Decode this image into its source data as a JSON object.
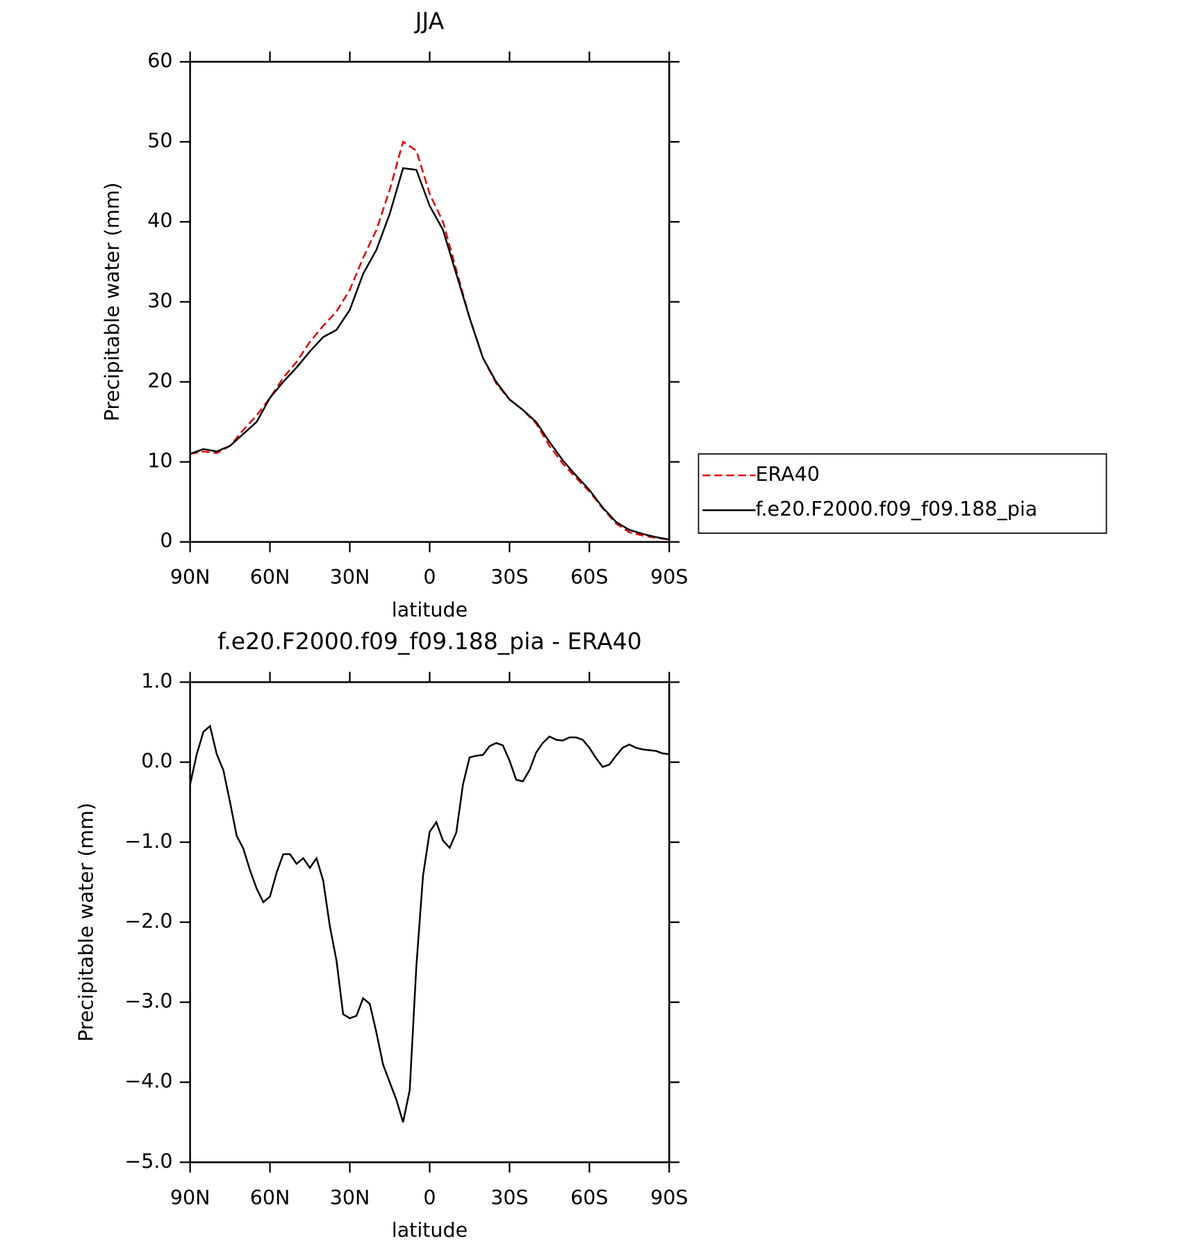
{
  "chart_data": [
    {
      "type": "line",
      "title": "JJA",
      "xlabel": "latitude",
      "ylabel": "Precipitable water (mm)",
      "x": [
        90,
        85,
        80,
        75,
        70,
        65,
        60,
        55,
        50,
        45,
        40,
        35,
        30,
        25,
        20,
        15,
        10,
        5,
        0,
        -5,
        -10,
        -15,
        -20,
        -25,
        -30,
        -35,
        -40,
        -45,
        -50,
        -55,
        -60,
        -65,
        -70,
        -75,
        -80,
        -85,
        -90
      ],
      "series": [
        {
          "name": "ERA40",
          "color": "#e00000",
          "line_style": "dashed",
          "values": [
            11,
            11.3,
            11.1,
            12,
            14,
            15.8,
            18,
            20.5,
            22.5,
            25,
            27,
            28.8,
            31.5,
            35.5,
            39,
            44,
            50,
            48.9,
            43.5,
            40,
            34,
            28,
            23,
            19.8,
            17.8,
            16.5,
            14.8,
            12,
            9.8,
            8,
            6.3,
            4.2,
            2.3,
            1.2,
            0.8,
            0.5,
            0.3
          ]
        },
        {
          "name": "f.e20.F2000.f09_f09.188_pia",
          "color": "#000000",
          "line_style": "solid",
          "values": [
            11,
            11.6,
            11.3,
            12,
            13.5,
            15,
            18,
            20,
            21.8,
            23.8,
            25.6,
            26.5,
            29,
            33.5,
            36.5,
            41,
            46.7,
            46.5,
            42,
            39,
            33.5,
            28,
            23,
            20,
            17.8,
            16.5,
            15,
            12.5,
            10.2,
            8.3,
            6.5,
            4.3,
            2.5,
            1.5,
            1,
            0.6,
            0.3
          ]
        }
      ],
      "xlim": [
        90,
        -90
      ],
      "xticks": [
        {
          "value": 90,
          "label": "90N"
        },
        {
          "value": 60,
          "label": "60N"
        },
        {
          "value": 30,
          "label": "30N"
        },
        0,
        {
          "value": -30,
          "label": "30S"
        },
        {
          "value": -60,
          "label": "60S"
        },
        {
          "value": -90,
          "label": "90S"
        }
      ],
      "ylim": [
        0,
        60
      ],
      "yticks": [
        0,
        10,
        20,
        30,
        40,
        50,
        60
      ],
      "legend": "right"
    },
    {
      "type": "line",
      "title": "f.e20.F2000.f09_f09.188_pia - ERA40",
      "xlabel": "latitude",
      "ylabel": "Precipitable water (mm)",
      "x": [
        90,
        87.5,
        85,
        82.5,
        80,
        77.5,
        75,
        72.5,
        70,
        67.5,
        65,
        62.5,
        60,
        57.5,
        55,
        52.5,
        50,
        47.5,
        45,
        42.5,
        40,
        37.5,
        35,
        32.5,
        30,
        27.5,
        25,
        22.5,
        20,
        17.5,
        15,
        12.5,
        10,
        7.5,
        5,
        2.5,
        0,
        -2.5,
        -5,
        -7.5,
        -10,
        -12.5,
        -15,
        -17.5,
        -20,
        -22.5,
        -25,
        -27.5,
        -30,
        -32.5,
        -35,
        -37.5,
        -40,
        -42.5,
        -45,
        -47.5,
        -50,
        -52.5,
        -55,
        -57.5,
        -60,
        -62.5,
        -65,
        -67.5,
        -70,
        -72.5,
        -75,
        -77.5,
        -80,
        -82.5,
        -85,
        -87.5,
        -90
      ],
      "series": [
        {
          "color": "#000000",
          "line_style": "solid",
          "values": [
            -0.28,
            0.1,
            0.38,
            0.45,
            0.1,
            -0.1,
            -0.5,
            -0.92,
            -1.08,
            -1.35,
            -1.58,
            -1.75,
            -1.68,
            -1.38,
            -1.15,
            -1.15,
            -1.27,
            -1.2,
            -1.32,
            -1.2,
            -1.48,
            -2.05,
            -2.48,
            -3.15,
            -3.2,
            -3.17,
            -2.95,
            -3.02,
            -3.38,
            -3.78,
            -4.0,
            -4.22,
            -4.5,
            -4.1,
            -2.55,
            -1.42,
            -0.87,
            -0.75,
            -0.98,
            -1.07,
            -0.88,
            -0.28,
            0.06,
            0.08,
            0.09,
            0.2,
            0.24,
            0.21,
            0.02,
            -0.22,
            -0.24,
            -0.1,
            0.12,
            0.24,
            0.32,
            0.28,
            0.27,
            0.31,
            0.31,
            0.28,
            0.18,
            0.05,
            -0.06,
            -0.03,
            0.08,
            0.18,
            0.22,
            0.18,
            0.16,
            0.15,
            0.14,
            0.11,
            0.1
          ]
        }
      ],
      "xlim": [
        90,
        -90
      ],
      "xticks": [
        {
          "value": 90,
          "label": "90N"
        },
        {
          "value": 60,
          "label": "60N"
        },
        {
          "value": 30,
          "label": "30N"
        },
        0,
        {
          "value": -30,
          "label": "30S"
        },
        {
          "value": -60,
          "label": "60S"
        },
        {
          "value": -90,
          "label": "90S"
        }
      ],
      "ylim": [
        -5,
        1
      ],
      "yticks": [
        {
          "value": 1,
          "label": "1.0"
        },
        {
          "value": 0,
          "label": "0.0"
        },
        {
          "value": -1,
          "label": "−1.0"
        },
        {
          "value": -2,
          "label": "−2.0"
        },
        {
          "value": -3,
          "label": "−3.0"
        },
        {
          "value": -4,
          "label": "−4.0"
        },
        {
          "value": -5,
          "label": "−5.0"
        }
      ]
    }
  ]
}
